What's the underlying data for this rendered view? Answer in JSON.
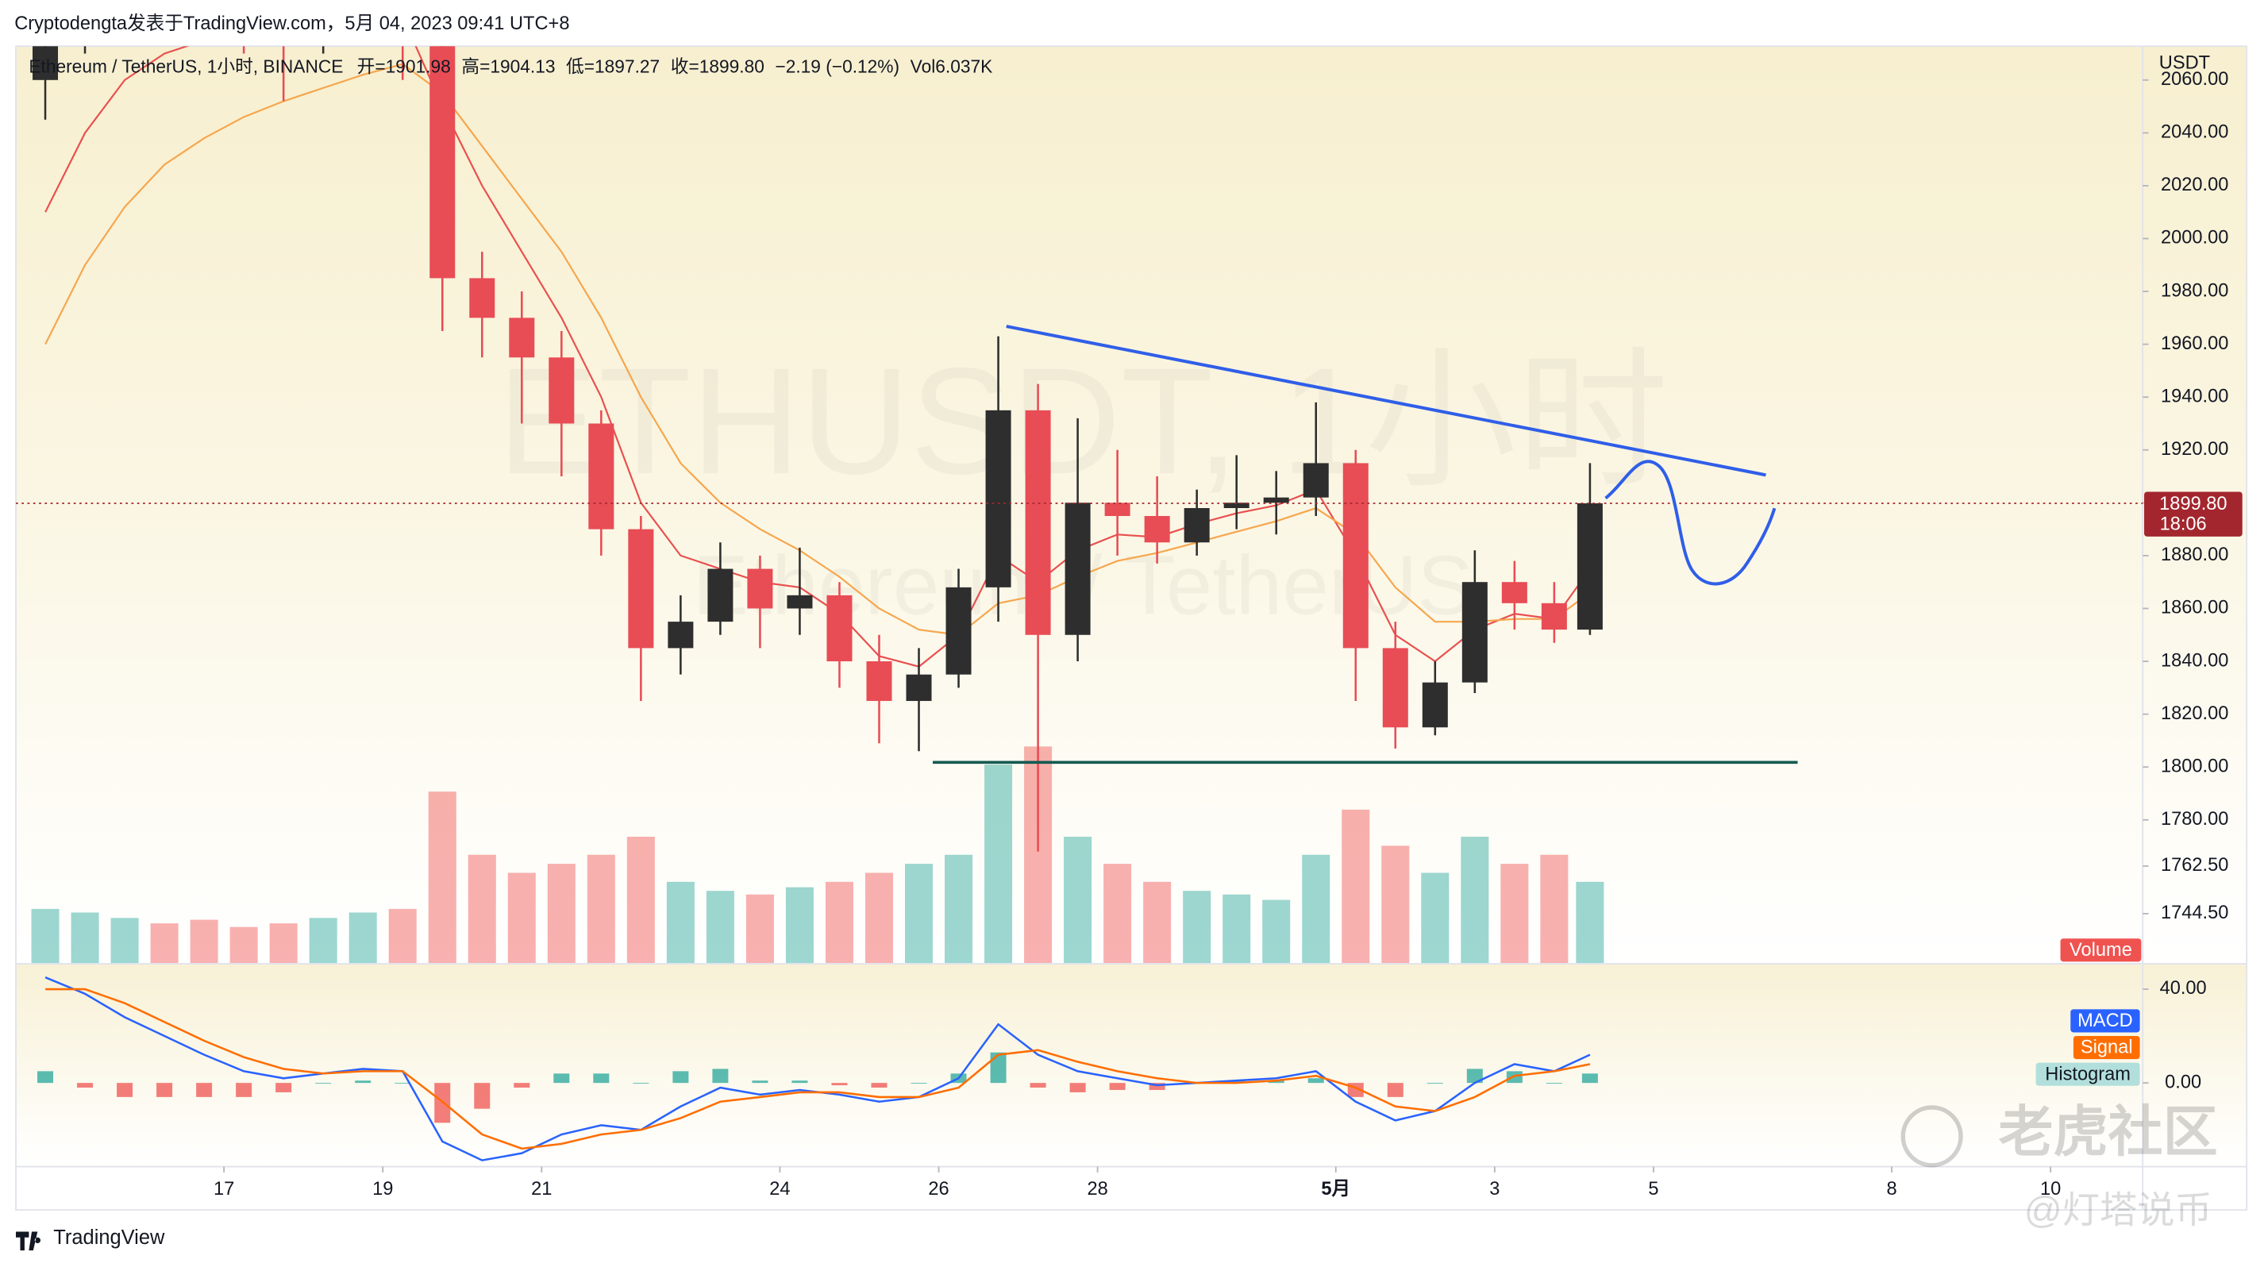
{
  "header": "Cryptodengta发表于TradingView.com，5月 04, 2023 09:41 UTC+8",
  "footer": {
    "brand": "TradingView",
    "watermark": [
      "老虎社区",
      "@灯塔说币"
    ]
  },
  "chart_data": [
    {
      "type": "candlestick",
      "legend_text": "Ethereum / TetherUS, 1小时, BINANCE",
      "ohlc_text": [
        "开=1901.98",
        "高=1904.13",
        "低=1897.27",
        "收=1899.80",
        "−2.19 (−0.12%)",
        "Vol6.037K"
      ],
      "y_axis_label": "USDT",
      "watermark": [
        "ETHUSDT, 1小时",
        "Ethereum / TetherUS"
      ],
      "up_color": "#2e2e2e",
      "down_color": "#e84c55",
      "x": [
        14.75,
        15.25,
        15.75,
        16.25,
        16.75,
        17.25,
        17.75,
        18.25,
        18.75,
        19.25,
        19.75,
        20.25,
        20.75,
        21.25,
        21.75,
        22.25,
        22.75,
        23.25,
        23.75,
        24.25,
        24.75,
        25.25,
        25.75,
        26.25,
        26.75,
        27.25,
        27.75,
        28.25,
        28.75,
        29.25,
        29.75,
        30.25,
        30.75,
        31.25,
        31.75,
        32.25,
        32.75,
        33.25,
        33.75,
        34.2
      ],
      "open": [
        2060,
        2080,
        2090,
        2095,
        2090,
        2085,
        2080,
        2075,
        2085,
        2090,
        2085,
        1985,
        1970,
        1955,
        1930,
        1890,
        1845,
        1855,
        1875,
        1860,
        1865,
        1840,
        1825,
        1835,
        1868,
        1935,
        1850,
        1900,
        1895,
        1885,
        1898,
        1900,
        1902,
        1915,
        1845,
        1815,
        1832,
        1870,
        1862,
        1852
      ],
      "high": [
        2090,
        2100,
        2110,
        2105,
        2100,
        2095,
        2090,
        2095,
        2100,
        2095,
        2090,
        1995,
        1980,
        1965,
        1935,
        1895,
        1865,
        1885,
        1880,
        1883,
        1870,
        1850,
        1845,
        1875,
        1963,
        1945,
        1932,
        1920,
        1910,
        1905,
        1918,
        1912,
        1938,
        1920,
        1855,
        1840,
        1882,
        1878,
        1870,
        1915
      ],
      "low": [
        2045,
        2070,
        2080,
        2085,
        2075,
        2070,
        2052,
        2070,
        2075,
        2060,
        1965,
        1955,
        1930,
        1910,
        1880,
        1825,
        1835,
        1850,
        1845,
        1850,
        1830,
        1809,
        1806,
        1830,
        1855,
        1768,
        1840,
        1880,
        1877,
        1880,
        1890,
        1888,
        1895,
        1825,
        1807,
        1812,
        1828,
        1852,
        1847,
        1850
      ],
      "close": [
        2080,
        2090,
        2095,
        2090,
        2085,
        2080,
        2075,
        2085,
        2090,
        2085,
        1985,
        1970,
        1955,
        1930,
        1890,
        1845,
        1855,
        1875,
        1860,
        1865,
        1840,
        1825,
        1835,
        1868,
        1935,
        1850,
        1900,
        1895,
        1885,
        1898,
        1900,
        1902,
        1915,
        1845,
        1815,
        1832,
        1870,
        1862,
        1852,
        1899.8
      ],
      "overlays": [
        {
          "color": "#e8504f",
          "values": [
            2010,
            2040,
            2060,
            2070,
            2075,
            2077,
            2077,
            2079,
            2082,
            2084,
            2050,
            2020,
            1995,
            1970,
            1940,
            1900,
            1880,
            1875,
            1870,
            1868,
            1858,
            1842,
            1838,
            1850,
            1880,
            1870,
            1882,
            1888,
            1887,
            1892,
            1896,
            1899,
            1905,
            1880,
            1850,
            1840,
            1852,
            1858,
            1856,
            1875
          ]
        },
        {
          "color": "#f6a64d",
          "values": [
            1960,
            1990,
            2012,
            2028,
            2038,
            2046,
            2052,
            2057,
            2062,
            2066,
            2055,
            2035,
            2015,
            1995,
            1970,
            1940,
            1915,
            1900,
            1890,
            1882,
            1872,
            1860,
            1852,
            1850,
            1862,
            1865,
            1872,
            1878,
            1881,
            1885,
            1889,
            1893,
            1898,
            1888,
            1868,
            1855,
            1855,
            1856,
            1856,
            1866
          ]
        }
      ],
      "volume": {
        "name": "Volume",
        "up_color": "#26a69a",
        "down_color": "#ef5350",
        "values": [
          30,
          28,
          25,
          22,
          24,
          20,
          22,
          25,
          28,
          30,
          95,
          60,
          50,
          55,
          60,
          70,
          45,
          40,
          38,
          42,
          45,
          50,
          55,
          60,
          110,
          120,
          70,
          55,
          45,
          40,
          38,
          35,
          60,
          85,
          65,
          50,
          70,
          55,
          60,
          45
        ]
      },
      "last_price": {
        "value": 1899.8,
        "label": "1899.80"
      },
      "countdown": "18:06",
      "xlim": [
        14.38,
        41.16
      ],
      "xticks": [
        17,
        19,
        21,
        24,
        26,
        28,
        {
          "value": 31,
          "label": "5月"
        },
        {
          "value": 33,
          "label": "3"
        },
        {
          "value": 35,
          "label": "5"
        },
        {
          "value": 38,
          "label": "8"
        },
        {
          "value": 40,
          "label": "10"
        }
      ],
      "ylim": [
        1725.8,
        2072.8
      ],
      "yticks": [
        {
          "value": 2060,
          "label": "2060.00"
        },
        {
          "value": 2040,
          "label": "2040.00"
        },
        {
          "value": 2020,
          "label": "2020.00"
        },
        {
          "value": 2000,
          "label": "2000.00"
        },
        {
          "value": 1980,
          "label": "1980.00"
        },
        {
          "value": 1960,
          "label": "1960.00"
        },
        {
          "value": 1940,
          "label": "1940.00"
        },
        {
          "value": 1920,
          "label": "1920.00"
        },
        {
          "value": 1900,
          "label": "1900.00"
        },
        {
          "value": 1880,
          "label": "1880.00"
        },
        {
          "value": 1860,
          "label": "1860.00"
        },
        {
          "value": 1840,
          "label": "1840.00"
        },
        {
          "value": 1820,
          "label": "1820.00"
        },
        {
          "value": 1800,
          "label": "1800.00"
        },
        {
          "value": 1780,
          "label": "1780.00"
        },
        {
          "value": 1762.5,
          "label": "1762.50"
        },
        {
          "value": 1744.5,
          "label": "1744.50"
        }
      ],
      "grid": false
    },
    {
      "type": "macd",
      "series": [
        {
          "name": "MACD",
          "kind": "line",
          "color": "#2962ff",
          "values": [
            45,
            38,
            28,
            20,
            12,
            5,
            2,
            4,
            6,
            5,
            -25,
            -33,
            -30,
            -22,
            -18,
            -20,
            -10,
            -2,
            -5,
            -3,
            -5,
            -8,
            -6,
            2,
            25,
            12,
            5,
            2,
            -1,
            0,
            1,
            2,
            5,
            -8,
            -16,
            -12,
            0,
            8,
            5,
            12
          ]
        },
        {
          "name": "Signal",
          "kind": "line",
          "color": "#ff6d00",
          "values": [
            40,
            40,
            34,
            26,
            18,
            11,
            6,
            4,
            5,
            5,
            -8,
            -22,
            -28,
            -26,
            -22,
            -20,
            -15,
            -8,
            -6,
            -4,
            -4,
            -6,
            -6,
            -2,
            12,
            14,
            9,
            5,
            2,
            0,
            0,
            1,
            3,
            -2,
            -10,
            -12,
            -6,
            3,
            5,
            8
          ]
        },
        {
          "name": "Histogram",
          "kind": "histogram",
          "color": "#26a69a",
          "negative_color": "#ef5350",
          "values": [
            5,
            -2,
            -6,
            -6,
            -6,
            -6,
            -4,
            0,
            1,
            0,
            -17,
            -11,
            -2,
            4,
            4,
            0,
            5,
            6,
            1,
            1,
            -1,
            -2,
            0,
            4,
            13,
            -2,
            -4,
            -3,
            -3,
            0,
            1,
            1,
            2,
            -6,
            -6,
            0,
            6,
            5,
            0,
            4
          ]
        }
      ],
      "ylim": [
        -35.7,
        50.5
      ],
      "yticks": [
        {
          "value": 40,
          "label": "40.00"
        },
        {
          "value": 0,
          "label": "0.00"
        }
      ]
    }
  ]
}
